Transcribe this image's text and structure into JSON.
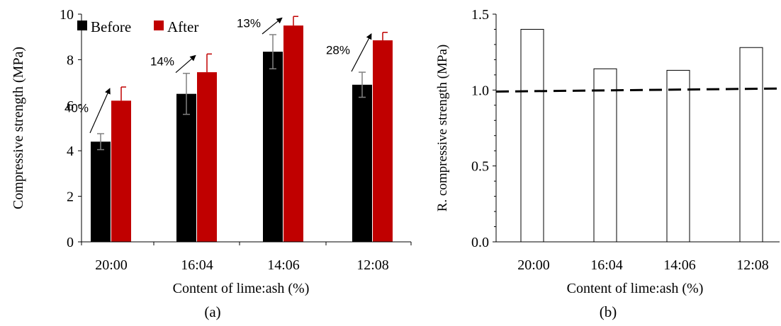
{
  "chart_data": [
    {
      "type": "bar",
      "panel_label": "(a)",
      "categories": [
        "20:00",
        "16:04",
        "14:06",
        "12:08"
      ],
      "xlabel": "Content of lime:ash (%)",
      "ylabel": "Compressive strength (MPa)",
      "ylim": [
        0,
        10
      ],
      "yticks": [
        "0",
        "2",
        "4",
        "6",
        "8",
        "10"
      ],
      "legend_position": "top-left",
      "series": [
        {
          "name": "Before",
          "color": "#000000",
          "values": [
            4.4,
            6.5,
            8.35,
            6.9
          ],
          "errors": [
            0.35,
            0.9,
            0.75,
            0.55
          ],
          "error_color": "#808080"
        },
        {
          "name": "After",
          "color": "#c00000",
          "values": [
            6.2,
            7.45,
            9.5,
            8.85
          ],
          "errors": [
            0.6,
            0.8,
            0.4,
            0.35
          ],
          "error_color": "#c00000"
        }
      ],
      "annotations": [
        "40%",
        "14%",
        "13%",
        "28%"
      ]
    },
    {
      "type": "bar",
      "panel_label": "(b)",
      "categories": [
        "20:00",
        "16:04",
        "14:06",
        "12:08"
      ],
      "xlabel": "Content of lime:ash (%)",
      "ylabel": "R. compressive strength (MPa)",
      "ylim": [
        0,
        1.5
      ],
      "yticks": [
        "0.0",
        "0.5",
        "1.0",
        "1.5"
      ],
      "series": [
        {
          "values": [
            1.4,
            1.14,
            1.13,
            1.28
          ],
          "fill": "#ffffff",
          "stroke": "#000000"
        }
      ],
      "reference_line": {
        "style": "dashed",
        "from": 0.99,
        "to": 1.01
      }
    }
  ]
}
